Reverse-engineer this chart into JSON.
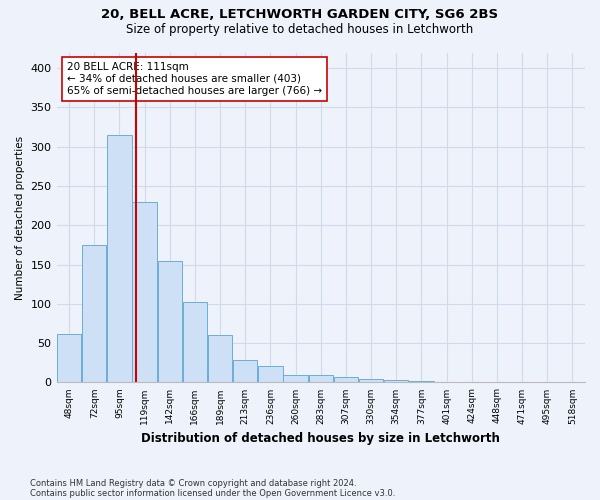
{
  "title1": "20, BELL ACRE, LETCHWORTH GARDEN CITY, SG6 2BS",
  "title2": "Size of property relative to detached houses in Letchworth",
  "xlabel": "Distribution of detached houses by size in Letchworth",
  "ylabel": "Number of detached properties",
  "bar_values": [
    62,
    175,
    315,
    230,
    155,
    102,
    60,
    28,
    21,
    9,
    10,
    7,
    5,
    3,
    2,
    1,
    1,
    1,
    0,
    0,
    0
  ],
  "bin_labels": [
    "48sqm",
    "72sqm",
    "95sqm",
    "119sqm",
    "142sqm",
    "166sqm",
    "189sqm",
    "213sqm",
    "236sqm",
    "260sqm",
    "283sqm",
    "307sqm",
    "330sqm",
    "354sqm",
    "377sqm",
    "401sqm",
    "424sqm",
    "448sqm",
    "471sqm",
    "495sqm",
    "518sqm"
  ],
  "bar_color": "#cde0f5",
  "bar_edge_color": "#6aaed6",
  "grid_color": "#d0daea",
  "vline_x_index": 2.67,
  "vline_color": "#cc0000",
  "annotation_text": "20 BELL ACRE: 111sqm\n← 34% of detached houses are smaller (403)\n65% of semi-detached houses are larger (766) →",
  "annotation_box_color": "#ffffff",
  "annotation_box_edge": "#cc0000",
  "ylim": [
    0,
    420
  ],
  "yticks": [
    0,
    50,
    100,
    150,
    200,
    250,
    300,
    350,
    400
  ],
  "footer1": "Contains HM Land Registry data © Crown copyright and database right 2024.",
  "footer2": "Contains public sector information licensed under the Open Government Licence v3.0.",
  "bg_color": "#eef2fa"
}
